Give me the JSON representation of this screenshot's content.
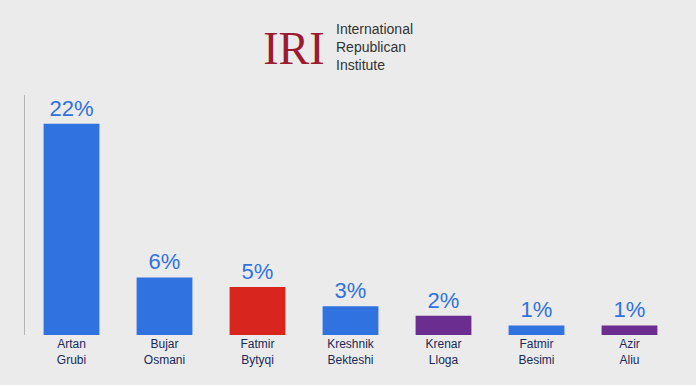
{
  "chart_data": {
    "type": "bar",
    "title": "IRI",
    "subtitle": "International Republican Institute",
    "categories": [
      "Artan Grubi",
      "Bujar Osmani",
      "Fatmir Bytyqi",
      "Kreshnik Bekteshi",
      "Krenar Lloga",
      "Fatmir Besimi",
      "Azir Aliu"
    ],
    "values": [
      22,
      6,
      5,
      3,
      2,
      1,
      1
    ],
    "value_labels": [
      "22%",
      "6%",
      "5%",
      "3%",
      "2%",
      "1%",
      "1%"
    ],
    "colors": [
      "#2f72e0",
      "#2f72e0",
      "#d8261e",
      "#2f72e0",
      "#6b2d8f",
      "#2f72e0",
      "#6b2d8f"
    ],
    "ylim": [
      0,
      25
    ],
    "data_labels": true,
    "tick_labels": "x",
    "grid": false
  }
}
